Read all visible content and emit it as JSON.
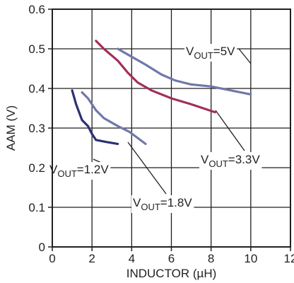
{
  "chart_data": {
    "type": "line",
    "xlabel": "INDUCTOR (µH)",
    "ylabel": "AAM (V)",
    "xlim": [
      0,
      12
    ],
    "ylim": [
      0,
      0.6
    ],
    "x_ticks": [
      "0",
      "2",
      "4",
      "6",
      "8",
      "10",
      "12"
    ],
    "y_ticks": [
      "0",
      "0.1",
      "0.2",
      "0.3",
      "0.4",
      "0.5",
      "0.6"
    ],
    "grid": true,
    "series": [
      {
        "name": "VOUT=5V",
        "label_parts": [
          "V",
          "OUT",
          "=5V"
        ],
        "color": "#7078aa",
        "points": [
          [
            3.3,
            0.5
          ],
          [
            4.0,
            0.48
          ],
          [
            4.7,
            0.46
          ],
          [
            5.5,
            0.435
          ],
          [
            6.2,
            0.42
          ],
          [
            7.0,
            0.41
          ],
          [
            8.0,
            0.405
          ],
          [
            9.0,
            0.395
          ],
          [
            10.0,
            0.385
          ]
        ]
      },
      {
        "name": "VOUT=3.3V",
        "label_parts": [
          "V",
          "OUT",
          "=3.3V"
        ],
        "color": "#a0305c",
        "points": [
          [
            2.2,
            0.52
          ],
          [
            2.6,
            0.5
          ],
          [
            3.3,
            0.47
          ],
          [
            3.8,
            0.44
          ],
          [
            4.3,
            0.415
          ],
          [
            5.0,
            0.395
          ],
          [
            6.0,
            0.375
          ],
          [
            7.0,
            0.36
          ],
          [
            8.2,
            0.34
          ]
        ]
      },
      {
        "name": "VOUT=1.8V",
        "label_parts": [
          "V",
          "OUT",
          "=1.8V"
        ],
        "color": "#7078aa",
        "points": [
          [
            1.5,
            0.39
          ],
          [
            1.8,
            0.375
          ],
          [
            2.2,
            0.345
          ],
          [
            2.6,
            0.325
          ],
          [
            3.3,
            0.305
          ],
          [
            3.9,
            0.29
          ],
          [
            4.7,
            0.26
          ]
        ]
      },
      {
        "name": "VOUT=1.2V",
        "label_parts": [
          "V",
          "OUT",
          "=1.2V"
        ],
        "color": "#2b3270",
        "points": [
          [
            1.0,
            0.395
          ],
          [
            1.2,
            0.36
          ],
          [
            1.5,
            0.32
          ],
          [
            1.8,
            0.305
          ],
          [
            2.0,
            0.285
          ],
          [
            2.2,
            0.27
          ],
          [
            2.7,
            0.265
          ],
          [
            3.3,
            0.26
          ]
        ]
      }
    ]
  }
}
